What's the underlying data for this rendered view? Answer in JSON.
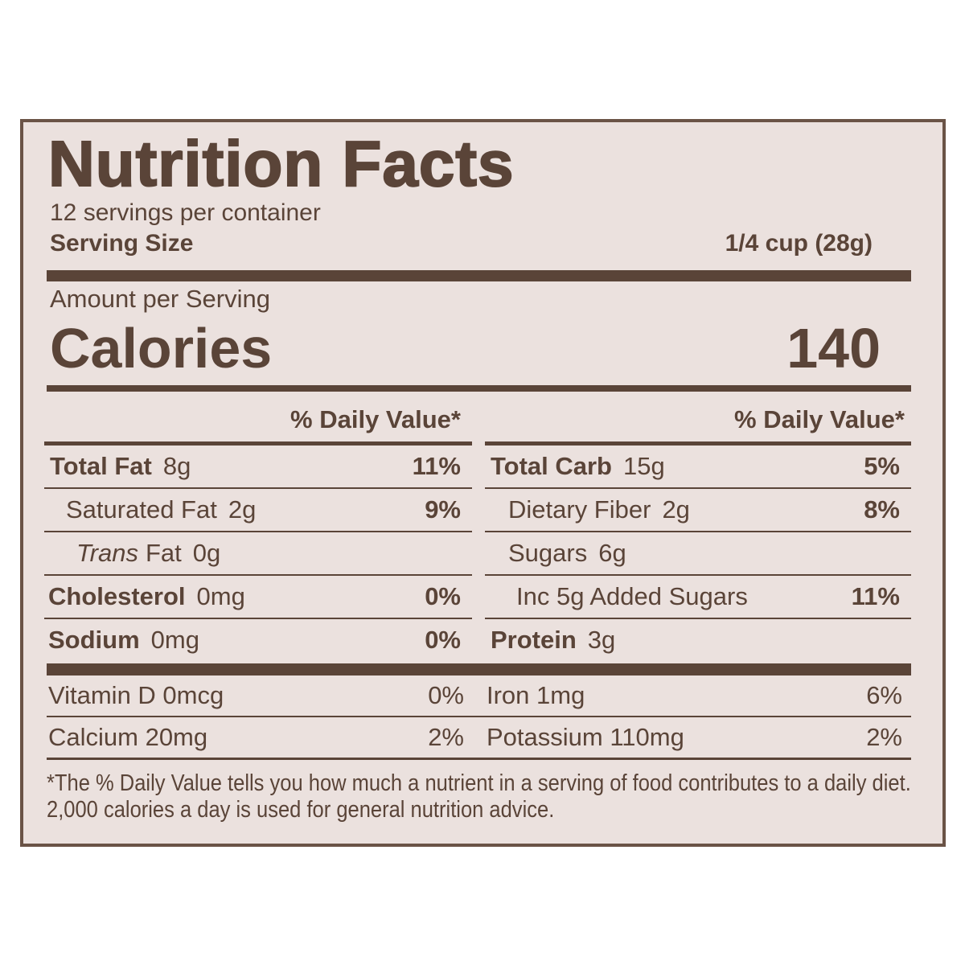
{
  "title": "Nutrition Facts",
  "servings": "12 servings per container",
  "serving_size": {
    "label": "Serving Size",
    "value": "1/4 cup (28g)"
  },
  "amount_per_serving": "Amount per Serving",
  "calories": {
    "label": "Calories",
    "value": "140"
  },
  "daily_value_header": "% Daily Value*",
  "left_rows": [
    {
      "name": "Total Fat",
      "amount": "8g",
      "dv": "11%"
    },
    {
      "name": "Saturated Fat",
      "amount": "2g",
      "dv": "9%"
    },
    {
      "name_italic": "Trans",
      "name": "Fat",
      "amount": "0g"
    },
    {
      "name": "Cholesterol",
      "amount": "0mg",
      "dv": "0%"
    },
    {
      "name": "Sodium",
      "amount": "0mg",
      "dv": "0%"
    }
  ],
  "right_rows": [
    {
      "name": "Total Carb",
      "amount": "15g",
      "dv": "5%"
    },
    {
      "name": "Dietary Fiber",
      "amount": "2g",
      "dv": "8%"
    },
    {
      "name": "Sugars",
      "amount": "6g"
    },
    {
      "name": "Inc 5g Added Sugars",
      "dv": "11%"
    },
    {
      "name": "Protein",
      "amount": "3g"
    }
  ],
  "vitamins": [
    [
      {
        "name": "Vitamin D 0mcg",
        "dv": "0%"
      },
      {
        "name": "Iron 1mg",
        "dv": "6%"
      }
    ],
    [
      {
        "name": "Calcium 20mg",
        "dv": "2%"
      },
      {
        "name": "Potassium 110mg",
        "dv": "2%"
      }
    ]
  ],
  "footnote": "*The % Daily Value tells you how much a nutrient in a serving of food contributes to a daily diet. 2,000 calories a day is used for general nutrition advice."
}
